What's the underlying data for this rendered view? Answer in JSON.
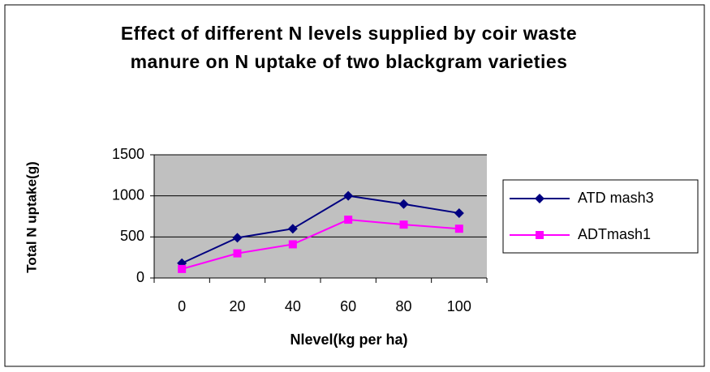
{
  "chart_data": {
    "type": "line",
    "title": "Effect of different N levels supplied by coir waste manure on N uptake of two blackgram varieties",
    "x_label": "Nlevel(kg per ha)",
    "y_label": "Total N uptake(g)",
    "categories": [
      "0",
      "20",
      "40",
      "60",
      "80",
      "100"
    ],
    "series": [
      {
        "name": "ATD mash3",
        "color": "#000080",
        "marker": "diamond",
        "values": [
          180,
          490,
          600,
          1000,
          900,
          790
        ]
      },
      {
        "name": "ADTmash1",
        "color": "#ff00ff",
        "marker": "square",
        "values": [
          110,
          300,
          410,
          710,
          650,
          600
        ]
      }
    ],
    "ylim": [
      0,
      1500
    ],
    "yticks": [
      0,
      500,
      1000,
      1500
    ],
    "grid": true,
    "legend": "right"
  }
}
